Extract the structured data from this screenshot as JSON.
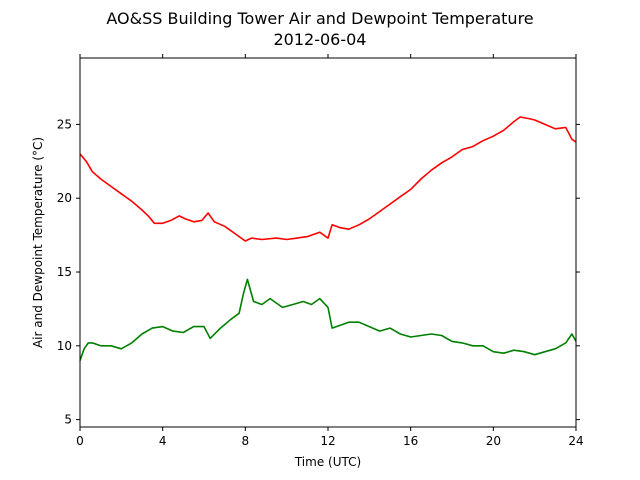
{
  "chart_data": {
    "type": "line",
    "title": "AO&SS Building Tower Air and Dewpoint Temperature",
    "subtitle": "2012-06-04",
    "xlabel": "Time (UTC)",
    "ylabel": "Air and Dewpoint Temperature (°C)",
    "xlim": [
      0,
      24
    ],
    "ylim": [
      4.5,
      29.5
    ],
    "xticks": [
      0,
      4,
      8,
      12,
      16,
      20,
      24
    ],
    "yticks": [
      5,
      10,
      15,
      20,
      25
    ],
    "grid": false,
    "series": [
      {
        "color": "#ff0000",
        "x": [
          0,
          0.3,
          0.6,
          1,
          1.5,
          2,
          2.5,
          3,
          3.3,
          3.6,
          4,
          4.4,
          4.8,
          5.1,
          5.5,
          5.9,
          6.2,
          6.5,
          7,
          7.5,
          8,
          8.3,
          8.8,
          9.5,
          10,
          10.5,
          11,
          11.6,
          12,
          12.2,
          12.6,
          13,
          13.5,
          14,
          14.5,
          15,
          15.5,
          16,
          16.5,
          17,
          17.5,
          18,
          18.5,
          19,
          19.5,
          20,
          20.5,
          21,
          21.3,
          21.7,
          22,
          22.5,
          23,
          23.5,
          23.8,
          24
        ],
        "y": [
          23.0,
          22.5,
          21.8,
          21.3,
          20.8,
          20.3,
          19.8,
          19.2,
          18.8,
          18.3,
          18.3,
          18.5,
          18.8,
          18.6,
          18.4,
          18.5,
          19.0,
          18.4,
          18.1,
          17.6,
          17.1,
          17.3,
          17.2,
          17.3,
          17.2,
          17.3,
          17.4,
          17.7,
          17.3,
          18.2,
          18.0,
          17.9,
          18.2,
          18.6,
          19.1,
          19.6,
          20.1,
          20.6,
          21.3,
          21.9,
          22.4,
          22.8,
          23.3,
          23.5,
          23.9,
          24.2,
          24.6,
          25.2,
          25.5,
          25.4,
          25.3,
          25.0,
          24.7,
          24.8,
          24.0,
          23.8
        ]
      },
      {
        "color": "#008000",
        "x": [
          0,
          0.2,
          0.4,
          0.6,
          1,
          1.5,
          2,
          2.5,
          3,
          3.5,
          4,
          4.5,
          5,
          5.5,
          6,
          6.3,
          6.8,
          7.3,
          7.7,
          7.9,
          8.1,
          8.4,
          8.8,
          9.2,
          9.8,
          10.3,
          10.8,
          11.2,
          11.6,
          12,
          12.2,
          12.6,
          13,
          13.5,
          14,
          14.5,
          15,
          15.5,
          16,
          16.5,
          17,
          17.5,
          18,
          18.5,
          19,
          19.5,
          20,
          20.5,
          21,
          21.5,
          22,
          22.5,
          23,
          23.5,
          23.8,
          24
        ],
        "y": [
          9.0,
          9.8,
          10.2,
          10.2,
          10.0,
          10.0,
          9.8,
          10.2,
          10.8,
          11.2,
          11.3,
          11.0,
          10.9,
          11.3,
          11.3,
          10.5,
          11.2,
          11.8,
          12.2,
          13.5,
          14.5,
          13.0,
          12.8,
          13.2,
          12.6,
          12.8,
          13.0,
          12.8,
          13.2,
          12.6,
          11.2,
          11.4,
          11.6,
          11.6,
          11.3,
          11.0,
          11.2,
          10.8,
          10.6,
          10.7,
          10.8,
          10.7,
          10.3,
          10.2,
          10.0,
          10.0,
          9.6,
          9.5,
          9.7,
          9.6,
          9.4,
          9.6,
          9.8,
          10.2,
          10.8,
          10.3
        ]
      }
    ]
  }
}
